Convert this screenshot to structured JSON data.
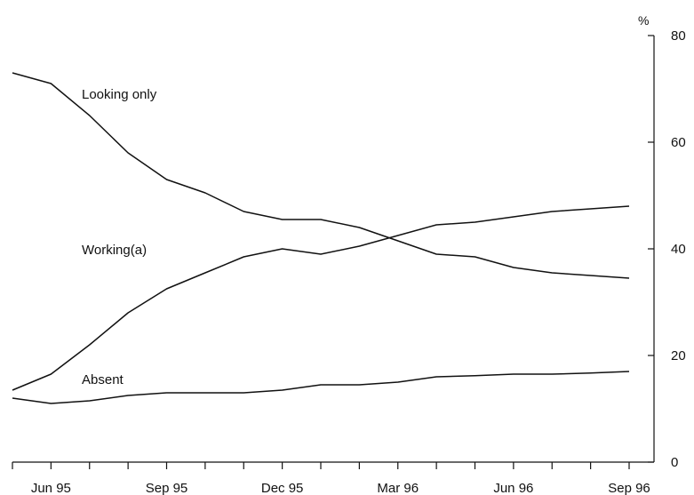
{
  "chart_data": {
    "type": "line",
    "x_labels": [
      "Jun 95",
      "Sep 95",
      "Dec 95",
      "Mar 96",
      "Jun 96",
      "Sep 96"
    ],
    "x": [
      "May 95",
      "Jun 95",
      "Jul 95",
      "Aug 95",
      "Sep 95",
      "Oct 95",
      "Nov 95",
      "Dec 95",
      "Jan 96",
      "Feb 96",
      "Mar 96",
      "Apr 96",
      "May 96",
      "Jun 96",
      "Jul 96",
      "Aug 96",
      "Sep 96"
    ],
    "series": [
      {
        "name": "Looking only",
        "values": [
          73,
          71,
          65,
          58,
          53,
          50.5,
          47,
          45.5,
          45.5,
          44,
          41.5,
          39,
          38.5,
          36.5,
          35.5,
          35,
          34.5
        ]
      },
      {
        "name": "Working(a)",
        "values": [
          13.5,
          16.5,
          22,
          28,
          32.5,
          35.5,
          38.5,
          40,
          39,
          40.5,
          42.5,
          44.5,
          45,
          46,
          47,
          47.5,
          48
        ]
      },
      {
        "name": "Absent",
        "values": [
          12,
          11,
          11.5,
          12.5,
          13,
          13,
          13,
          13.5,
          14.5,
          14.5,
          15,
          16,
          16.2,
          16.5,
          16.5,
          16.7,
          17
        ]
      }
    ],
    "y_unit": "%",
    "y_ticks": [
      "0",
      "20",
      "40",
      "60",
      "80"
    ],
    "ylim": [
      0,
      80
    ],
    "y_axis_side": "right",
    "legend": "inline labels"
  }
}
